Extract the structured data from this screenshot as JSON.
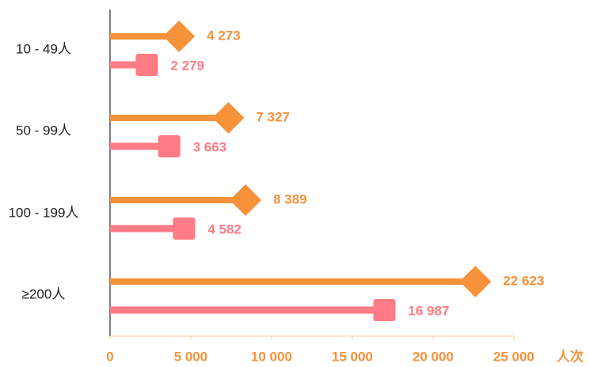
{
  "chart_data": {
    "type": "lollipop",
    "categories": [
      "10 - 49人",
      "50 - 99人",
      "100 - 199人",
      "≥200人"
    ],
    "series": [
      {
        "color": "#f7923a",
        "marker": "diamond",
        "values": [
          4273,
          7327,
          8389,
          22623
        ],
        "value_labels": [
          "4 273",
          "7 327",
          "8 389",
          "22 623"
        ]
      },
      {
        "color": "#ff7b85",
        "marker": "square",
        "values": [
          2279,
          3663,
          4582,
          16987
        ],
        "value_labels": [
          "2 279",
          "3 663",
          "4 582",
          "16 987"
        ]
      }
    ],
    "xlim": [
      0,
      25000
    ],
    "xticks": [
      0,
      {
        "value": 5000,
        "label": "5 000"
      },
      {
        "value": 10000,
        "label": "10 000"
      },
      {
        "value": 15000,
        "label": "15 000"
      },
      {
        "value": 20000,
        "label": "20 000"
      },
      {
        "value": 25000,
        "label": "25 000"
      }
    ],
    "xlabel": "人次"
  }
}
